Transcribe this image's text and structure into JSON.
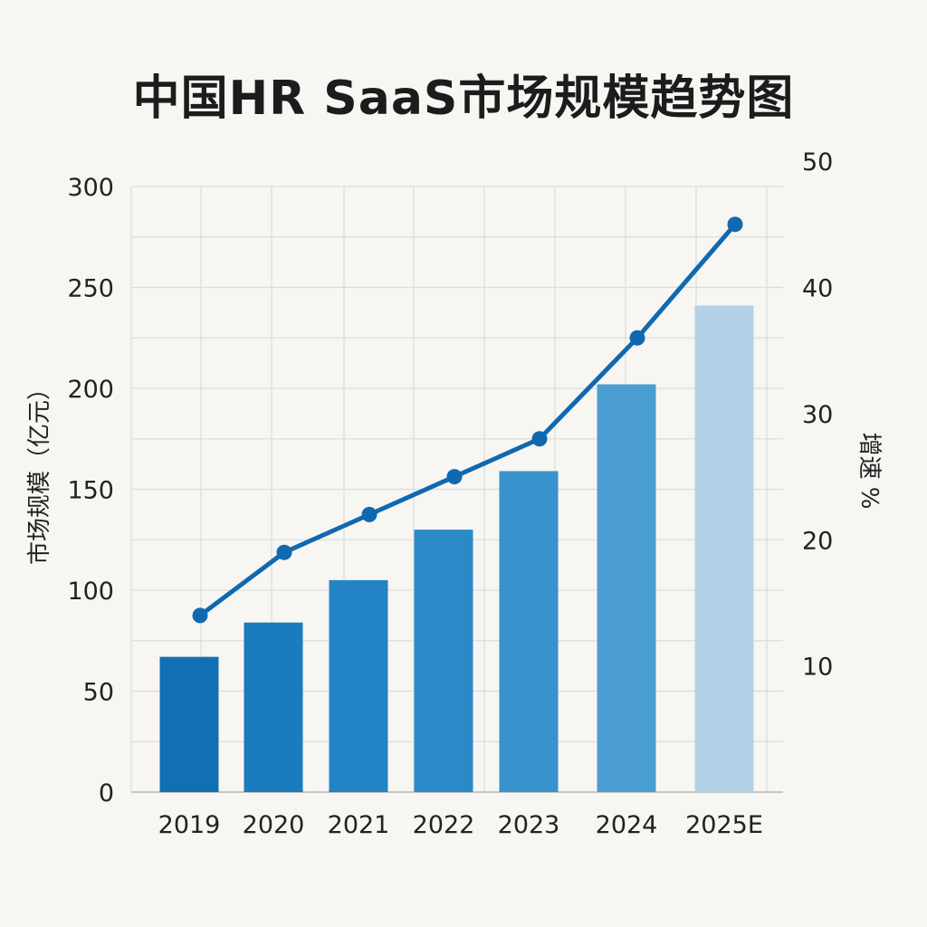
{
  "chart_data": {
    "type": "bar",
    "title": "中国HR SaaS市场规模趋势图",
    "categories": [
      "2019",
      "2020",
      "2021",
      "2022",
      "2023",
      "2024",
      "2025E"
    ],
    "series": [
      {
        "type": "bar",
        "axis": "left",
        "values": [
          67,
          84,
          105,
          130,
          159,
          202,
          241
        ]
      },
      {
        "type": "line",
        "axis": "right",
        "values": [
          14,
          19,
          22,
          25,
          28,
          36,
          45
        ]
      }
    ],
    "ylabel_left": "市场规模（亿元）",
    "ylabel_right": "增速 %",
    "yticks_left": [
      "0",
      "50",
      "100",
      "150",
      "200",
      "250",
      "300"
    ],
    "yticks_right": [
      "10",
      "20",
      "30",
      "40",
      "50"
    ],
    "ylim_left": [
      0,
      300
    ],
    "ylim_right": [
      0,
      48
    ],
    "grid": true,
    "bar_colors": [
      "#1070b3",
      "#1a7bbd",
      "#2284c4",
      "#2a8ac8",
      "#3893cc",
      "#4a9ed2",
      "#b3d2e8"
    ],
    "line_color": "#1069b0"
  }
}
